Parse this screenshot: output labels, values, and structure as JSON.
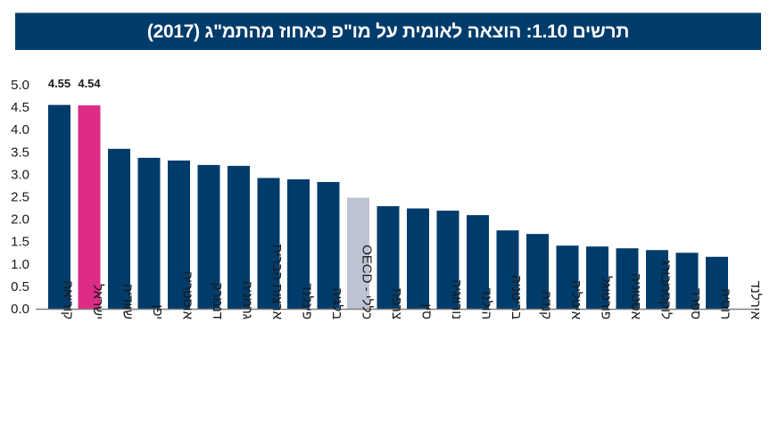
{
  "title": "תרשים 1.10: הוצאה לאומית על מו\"פ כאחוז מהתמ\"ג (2017)",
  "colors": {
    "header": "#003c6b",
    "bar_default": "#003c6b",
    "bar_israel": "#de2b86",
    "bar_oecd": "#bcc3d3",
    "axis": "#808080"
  },
  "chart_data": {
    "type": "bar",
    "title": "תרשים 1.10: הוצאה לאומית על מו\"פ כאחוז מהתמ\"ג (2017)",
    "xlabel": "",
    "ylabel": "",
    "ylim": [
      0,
      5
    ],
    "yticks": [
      "0.0",
      "0.5",
      "1.0",
      "1.5",
      "2.0",
      "2.5",
      "3.0",
      "3.5",
      "4.0",
      "4.5",
      "5.0"
    ],
    "grid": false,
    "legend": "none",
    "categories": [
      "קוריאה",
      "ישראל",
      "שוודיה",
      "יפן",
      "אוסטריה",
      "דנמרק",
      "גרמניה",
      "ארצות הברית",
      "פינלנד",
      "בלגיה",
      "כללי - OECD",
      "צרפת",
      "סין",
      "נורווגיה",
      "הולנד",
      "בריטניה",
      "קנדה",
      "איטליה",
      "פורטוגל",
      "אסטוניה",
      "לוקסמבורג",
      "ספרד",
      "רוסיה",
      "אירלנד"
    ],
    "values": [
      4.55,
      4.54,
      3.57,
      3.37,
      3.31,
      3.21,
      3.19,
      2.92,
      2.89,
      2.83,
      2.48,
      2.29,
      2.24,
      2.19,
      2.09,
      1.75,
      1.67,
      1.41,
      1.39,
      1.35,
      1.31,
      1.25,
      1.16,
      null
    ],
    "highlight": {
      "ישראל": "israel",
      "כללי - OECD": "oecd"
    },
    "data_labels": [
      {
        "category": "קוריאה",
        "text": "4.55"
      },
      {
        "category": "ישראל",
        "text": "4.54"
      }
    ]
  }
}
